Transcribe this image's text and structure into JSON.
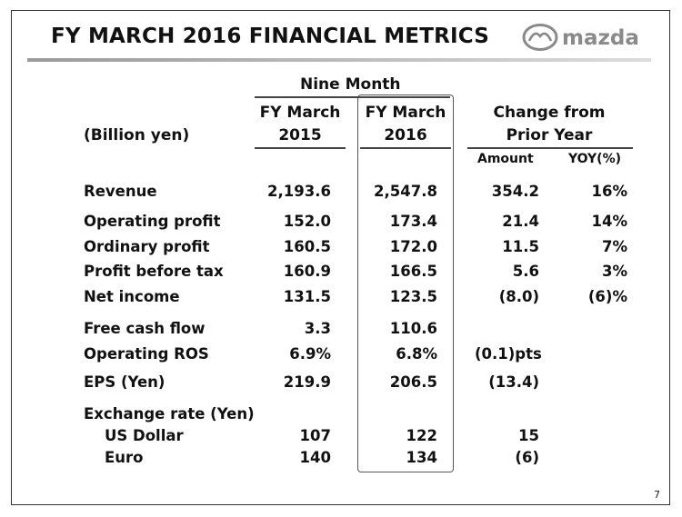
{
  "header": {
    "title": "FY MARCH 2016 FINANCIAL METRICS",
    "logo_text": "mazda"
  },
  "table": {
    "period_header": "Nine Month",
    "unit_label": "(Billion yen)",
    "columns": {
      "fy2015": [
        "FY March",
        "2015"
      ],
      "fy2016": [
        "FY March",
        "2016"
      ],
      "change": [
        "Change from",
        "Prior Year"
      ],
      "amount": "Amount",
      "yoy": "YOY(%)"
    },
    "rows": [
      {
        "label": "Revenue",
        "fy2015": "2,193.6",
        "fy2016": "2,547.8",
        "amount": "354.2",
        "yoy": "16%"
      },
      {
        "label": "Operating profit",
        "fy2015": "152.0",
        "fy2016": "173.4",
        "amount": "21.4",
        "yoy": "14%"
      },
      {
        "label": "Ordinary profit",
        "fy2015": "160.5",
        "fy2016": "172.0",
        "amount": "11.5",
        "yoy": "7%"
      },
      {
        "label": "Profit before tax",
        "fy2015": "160.9",
        "fy2016": "166.5",
        "amount": "5.6",
        "yoy": "3%"
      },
      {
        "label": "Net income",
        "fy2015": "131.5",
        "fy2016": "123.5",
        "amount": "(8.0)",
        "yoy": "(6)%"
      },
      {
        "label": "Free cash flow",
        "fy2015": "3.3",
        "fy2016": "110.6",
        "amount": "",
        "yoy": ""
      },
      {
        "label": "Operating ROS",
        "fy2015": "6.9%",
        "fy2016": "6.8%",
        "amount": "(0.1)pts",
        "yoy": ""
      },
      {
        "label": "EPS (Yen)",
        "fy2015": "219.9",
        "fy2016": "206.5",
        "amount": "(13.4)",
        "yoy": ""
      },
      {
        "label": "Exchange rate (Yen)",
        "fy2015": "",
        "fy2016": "",
        "amount": "",
        "yoy": ""
      },
      {
        "label": "US Dollar",
        "fy2015": "107",
        "fy2016": "122",
        "amount": "15",
        "yoy": ""
      },
      {
        "label": "Euro",
        "fy2015": "140",
        "fy2016": "134",
        "amount": "(6)",
        "yoy": ""
      }
    ]
  },
  "footer": {
    "page_number": "7"
  },
  "colors": {
    "text": "#111111",
    "rule": "#444444",
    "title_rule": "#9a9a9a",
    "logo": "#8a8a8a"
  }
}
